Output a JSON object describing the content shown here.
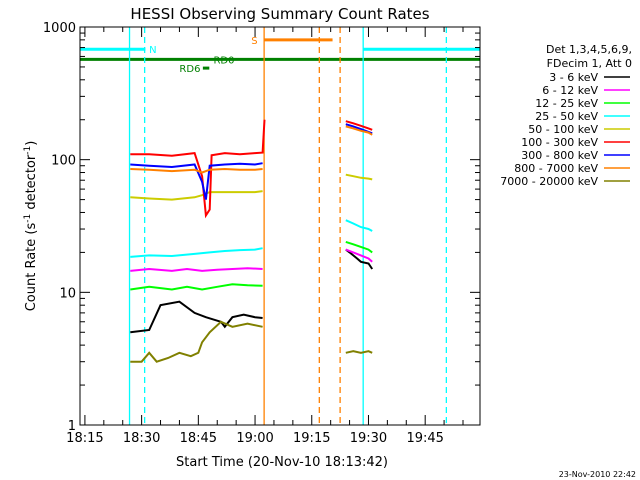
{
  "chart_data": {
    "type": "line",
    "title": "HESSI Observing Summary Count Rates",
    "xlabel": "Start Time (20-Nov-10 18:13:42)",
    "ylabel_prefix": "Count Rate (s",
    "ylabel_sup1": "-1",
    "ylabel_mid": " detector",
    "ylabel_sup2": "-1",
    "ylabel_suffix": ")",
    "yscale": "log",
    "ylim": [
      1,
      1000
    ],
    "xlim_minutes": [
      1093.7,
      1199.5
    ],
    "x_ticks": [
      {
        "t": 1095,
        "label": "18:15"
      },
      {
        "t": 1110,
        "label": "18:30"
      },
      {
        "t": 1125,
        "label": "18:45"
      },
      {
        "t": 1140,
        "label": "19:00"
      },
      {
        "t": 1155,
        "label": "19:15"
      },
      {
        "t": 1170,
        "label": "19:30"
      },
      {
        "t": 1185,
        "label": "19:45"
      }
    ],
    "y_ticks": [
      {
        "v": 1,
        "label": "1"
      },
      {
        "v": 10,
        "label": "10"
      },
      {
        "v": 100,
        "label": "100"
      },
      {
        "v": 1000,
        "label": "1000"
      }
    ],
    "legend_title_1": "Det 1,3,4,5,6,9,",
    "legend_title_2": "FDecim 1, Att 0",
    "series": [
      {
        "name": "3 - 6 keV",
        "color": "#000000",
        "segments": [
          [
            [
              1107,
              5.0
            ],
            [
              1112,
              5.2
            ],
            [
              1115,
              8.0
            ],
            [
              1120,
              8.5
            ],
            [
              1124,
              7.0
            ],
            [
              1127,
              6.5
            ],
            [
              1131,
              6.0
            ],
            [
              1132,
              5.5
            ],
            [
              1134,
              6.5
            ],
            [
              1137,
              6.8
            ],
            [
              1140,
              6.5
            ],
            [
              1142,
              6.4
            ]
          ],
          [
            [
              1164,
              21
            ],
            [
              1165,
              20
            ],
            [
              1166,
              19
            ],
            [
              1167,
              18
            ],
            [
              1168,
              17
            ],
            [
              1170,
              16.5
            ],
            [
              1171,
              15
            ]
          ]
        ]
      },
      {
        "name": "6 - 12 keV",
        "color": "#ff00ff",
        "segments": [
          [
            [
              1107,
              14.5
            ],
            [
              1112,
              15.0
            ],
            [
              1118,
              14.5
            ],
            [
              1122,
              15.0
            ],
            [
              1126,
              14.5
            ],
            [
              1130,
              14.8
            ],
            [
              1134,
              15.0
            ],
            [
              1138,
              15.2
            ],
            [
              1142,
              15.0
            ]
          ],
          [
            [
              1164,
              21
            ],
            [
              1166,
              20
            ],
            [
              1168,
              19
            ],
            [
              1170,
              18
            ],
            [
              1171,
              17
            ]
          ]
        ]
      },
      {
        "name": "12 - 25 keV",
        "color": "#00ff00",
        "segments": [
          [
            [
              1107,
              10.5
            ],
            [
              1112,
              11.0
            ],
            [
              1118,
              10.5
            ],
            [
              1122,
              11.0
            ],
            [
              1126,
              10.5
            ],
            [
              1130,
              11.0
            ],
            [
              1134,
              11.5
            ],
            [
              1138,
              11.3
            ],
            [
              1142,
              11.2
            ]
          ],
          [
            [
              1164,
              24
            ],
            [
              1166,
              23
            ],
            [
              1168,
              22
            ],
            [
              1170,
              21
            ],
            [
              1171,
              20
            ]
          ]
        ]
      },
      {
        "name": "25 - 50 keV",
        "color": "#00ffff",
        "segments": [
          [
            [
              1107,
              18.5
            ],
            [
              1112,
              19.0
            ],
            [
              1118,
              18.8
            ],
            [
              1124,
              19.5
            ],
            [
              1128,
              20.0
            ],
            [
              1132,
              20.5
            ],
            [
              1136,
              20.8
            ],
            [
              1140,
              21.0
            ],
            [
              1142,
              21.5
            ]
          ],
          [
            [
              1164,
              35
            ],
            [
              1166,
              33
            ],
            [
              1168,
              31
            ],
            [
              1170,
              30
            ],
            [
              1171,
              29
            ]
          ]
        ]
      },
      {
        "name": "50 - 100 keV",
        "color": "#cccc00",
        "segments": [
          [
            [
              1107,
              52
            ],
            [
              1112,
              51
            ],
            [
              1118,
              50
            ],
            [
              1124,
              52
            ],
            [
              1126,
              54
            ],
            [
              1128,
              57
            ],
            [
              1132,
              57
            ],
            [
              1136,
              57
            ],
            [
              1140,
              57
            ],
            [
              1142,
              58
            ]
          ],
          [
            [
              1164,
              77
            ],
            [
              1166,
              75
            ],
            [
              1168,
              73
            ],
            [
              1170,
              72
            ],
            [
              1171,
              71
            ]
          ]
        ]
      },
      {
        "name": "100 - 300 keV",
        "color": "#ff0000",
        "segments": [
          [
            [
              1107,
              110
            ],
            [
              1112,
              110
            ],
            [
              1118,
              107
            ],
            [
              1124,
              112
            ],
            [
              1126,
              75
            ],
            [
              1127,
              38
            ],
            [
              1128,
              42
            ],
            [
              1128.5,
              108
            ],
            [
              1132,
              112
            ],
            [
              1136,
              110
            ],
            [
              1140,
              112
            ],
            [
              1142,
              113
            ],
            [
              1142.5,
              200
            ]
          ],
          [
            [
              1164,
              195
            ],
            [
              1166,
              188
            ],
            [
              1168,
              180
            ],
            [
              1170,
              172
            ],
            [
              1171,
              168
            ]
          ]
        ]
      },
      {
        "name": "300 - 800 keV",
        "color": "#0000ff",
        "segments": [
          [
            [
              1107,
              92
            ],
            [
              1112,
              90
            ],
            [
              1118,
              88
            ],
            [
              1124,
              92
            ],
            [
              1126,
              68
            ],
            [
              1127,
              50
            ],
            [
              1128,
              90
            ],
            [
              1132,
              92
            ],
            [
              1136,
              93
            ],
            [
              1140,
              92
            ],
            [
              1142,
              94
            ]
          ],
          [
            [
              1164,
              185
            ],
            [
              1166,
              178
            ],
            [
              1168,
              170
            ],
            [
              1170,
              162
            ],
            [
              1171,
              158
            ]
          ]
        ]
      },
      {
        "name": "800 - 7000 keV",
        "color": "#ff8000",
        "segments": [
          [
            [
              1107,
              85
            ],
            [
              1112,
              84
            ],
            [
              1118,
              82
            ],
            [
              1124,
              84
            ],
            [
              1126,
              80
            ],
            [
              1128,
              84
            ],
            [
              1132,
              85
            ],
            [
              1136,
              84
            ],
            [
              1140,
              84
            ],
            [
              1142,
              85
            ]
          ],
          [
            [
              1164,
              178
            ],
            [
              1166,
              172
            ],
            [
              1168,
              165
            ],
            [
              1170,
              160
            ],
            [
              1171,
              154
            ]
          ]
        ]
      },
      {
        "name": "7000 - 20000 keV",
        "color": "#808000",
        "segments": [
          [
            [
              1107,
              3.0
            ],
            [
              1110,
              3.0
            ],
            [
              1112,
              3.5
            ],
            [
              1114,
              3.0
            ],
            [
              1117,
              3.2
            ],
            [
              1120,
              3.5
            ],
            [
              1123,
              3.3
            ],
            [
              1125,
              3.5
            ],
            [
              1126,
              4.2
            ],
            [
              1128,
              5.0
            ],
            [
              1131,
              6.0
            ],
            [
              1134,
              5.5
            ],
            [
              1138,
              5.8
            ],
            [
              1142,
              5.5
            ]
          ],
          [
            [
              1164,
              3.5
            ],
            [
              1166,
              3.6
            ],
            [
              1168,
              3.5
            ],
            [
              1170,
              3.6
            ],
            [
              1171,
              3.5
            ]
          ]
        ]
      }
    ],
    "vertical_lines": [
      {
        "t": 1106.8,
        "color": "#00ffff",
        "style": "solid"
      },
      {
        "t": 1110.8,
        "color": "#00ffff",
        "style": "dashed"
      },
      {
        "t": 1142.4,
        "color": "#ff8000",
        "style": "solid"
      },
      {
        "t": 1157.0,
        "color": "#ff8000",
        "style": "dashed"
      },
      {
        "t": 1162.5,
        "color": "#ff8000",
        "style": "dashed"
      },
      {
        "t": 1168.6,
        "color": "#00ffff",
        "style": "solid"
      },
      {
        "t": 1190.6,
        "color": "#00ffff",
        "style": "dashed"
      }
    ],
    "flag_bars": [
      {
        "color": "#00ffff",
        "y": 680,
        "t1": 1093.7,
        "t2": 1111.0,
        "label": "N",
        "label_t": 1112.0
      },
      {
        "color": "#00ffff",
        "y": 680,
        "t1": 1168.6,
        "t2": 1199.5,
        "label": "",
        "label_t": 0
      },
      {
        "color": "#ff8000",
        "y": 800,
        "t1": 1142.4,
        "t2": 1160.5,
        "label": "S",
        "label_t": 1139.0
      },
      {
        "color": "#008000",
        "y": 570,
        "t1": 1093.7,
        "t2": 1199.5,
        "label": "RD0",
        "label_t": 1129.0
      },
      {
        "color": "#008000",
        "y": 490,
        "t1": 1126.2,
        "t2": 1127.9,
        "label": "RD6",
        "label_t": 1120.0
      }
    ],
    "timestamp": "23-Nov-2010 22:42"
  }
}
